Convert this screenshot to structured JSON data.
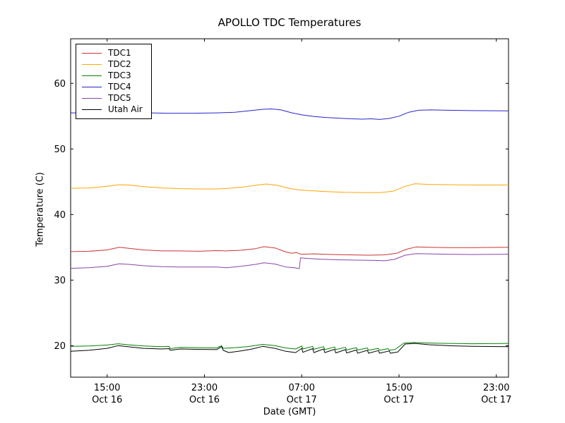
{
  "chart_data": {
    "type": "line",
    "title": "APOLLO TDC Temperatures",
    "xlabel": "Date (GMT)",
    "ylabel": "Temperature (C)",
    "x_unit": "hours after Oct 16 12:00 (GMT)",
    "xlim": [
      0,
      36
    ],
    "ylim": [
      15.2,
      66.8
    ],
    "grid": false,
    "legend_position": "upper left",
    "yticks": [
      {
        "value": 20,
        "label": "20"
      },
      {
        "value": 30,
        "label": "30"
      },
      {
        "value": 40,
        "label": "40"
      },
      {
        "value": 50,
        "label": "50"
      },
      {
        "value": 60,
        "label": "60"
      }
    ],
    "xticks": [
      {
        "value": 3,
        "time": "15:00",
        "date": "Oct 16"
      },
      {
        "value": 11,
        "time": "23:00",
        "date": "Oct 16"
      },
      {
        "value": 19,
        "time": "07:00",
        "date": "Oct 17"
      },
      {
        "value": 27,
        "time": "15:00",
        "date": "Oct 17"
      },
      {
        "value": 35,
        "time": "23:00",
        "date": "Oct 17"
      }
    ],
    "series": [
      {
        "name": "TDC1",
        "color": "#cc3333",
        "points": [
          [
            0,
            34.35
          ],
          [
            1.5,
            34.4
          ],
          [
            3,
            34.6
          ],
          [
            4,
            35.0
          ],
          [
            4.8,
            34.85
          ],
          [
            6,
            34.6
          ],
          [
            7.5,
            34.45
          ],
          [
            9,
            34.45
          ],
          [
            10.5,
            34.4
          ],
          [
            12,
            34.5
          ],
          [
            12.8,
            34.45
          ],
          [
            14,
            34.55
          ],
          [
            15.2,
            34.8
          ],
          [
            15.9,
            35.1
          ],
          [
            16.8,
            34.9
          ],
          [
            17.6,
            34.35
          ],
          [
            18.2,
            34.1
          ],
          [
            18.6,
            34.2
          ],
          [
            18.9,
            33.95
          ],
          [
            20,
            34.0
          ],
          [
            21.5,
            33.9
          ],
          [
            23,
            33.85
          ],
          [
            24.5,
            33.8
          ],
          [
            25.8,
            33.85
          ],
          [
            26.8,
            34.1
          ],
          [
            27.6,
            34.7
          ],
          [
            28.4,
            35.05
          ],
          [
            29.5,
            35.0
          ],
          [
            31,
            34.95
          ],
          [
            33,
            34.95
          ],
          [
            36,
            35.0
          ]
        ]
      },
      {
        "name": "TDC2",
        "color": "#ffa500",
        "points": [
          [
            0,
            44.0
          ],
          [
            1.5,
            44.05
          ],
          [
            3,
            44.3
          ],
          [
            4,
            44.55
          ],
          [
            4.8,
            44.5
          ],
          [
            6,
            44.25
          ],
          [
            7.5,
            44.05
          ],
          [
            9,
            43.95
          ],
          [
            10.5,
            43.9
          ],
          [
            12,
            43.9
          ],
          [
            13,
            44.0
          ],
          [
            14.2,
            44.2
          ],
          [
            15.4,
            44.5
          ],
          [
            16.1,
            44.65
          ],
          [
            17,
            44.45
          ],
          [
            17.8,
            44.05
          ],
          [
            18.6,
            43.8
          ],
          [
            19.5,
            43.65
          ],
          [
            21,
            43.5
          ],
          [
            22.5,
            43.4
          ],
          [
            24,
            43.35
          ],
          [
            25.5,
            43.35
          ],
          [
            26.5,
            43.55
          ],
          [
            27.5,
            44.3
          ],
          [
            28.3,
            44.7
          ],
          [
            29.3,
            44.6
          ],
          [
            31,
            44.55
          ],
          [
            33,
            44.5
          ],
          [
            36,
            44.5
          ]
        ]
      },
      {
        "name": "TDC3",
        "color": "#008000",
        "points": [
          [
            0,
            19.9
          ],
          [
            1.5,
            19.95
          ],
          [
            3,
            20.1
          ],
          [
            3.9,
            20.3
          ],
          [
            4.7,
            20.15
          ],
          [
            6,
            19.95
          ],
          [
            7.5,
            19.85
          ],
          [
            8.1,
            19.9
          ],
          [
            8.2,
            19.55
          ],
          [
            9,
            19.75
          ],
          [
            10.5,
            19.7
          ],
          [
            12,
            19.65
          ],
          [
            12.4,
            20.0
          ],
          [
            12.55,
            19.6
          ],
          [
            13.5,
            19.7
          ],
          [
            14.5,
            19.85
          ],
          [
            15.8,
            20.2
          ],
          [
            16.8,
            20.0
          ],
          [
            17.7,
            19.65
          ],
          [
            18.5,
            19.5
          ],
          [
            19.0,
            19.95
          ],
          [
            19.1,
            19.5
          ],
          [
            19.9,
            19.9
          ],
          [
            20.0,
            19.45
          ],
          [
            20.8,
            19.85
          ],
          [
            20.9,
            19.4
          ],
          [
            21.7,
            19.8
          ],
          [
            21.8,
            19.4
          ],
          [
            22.6,
            19.75
          ],
          [
            22.7,
            19.35
          ],
          [
            23.5,
            19.7
          ],
          [
            23.6,
            19.35
          ],
          [
            24.4,
            19.65
          ],
          [
            24.5,
            19.3
          ],
          [
            25.3,
            19.6
          ],
          [
            25.4,
            19.3
          ],
          [
            26.1,
            19.55
          ],
          [
            26.2,
            19.3
          ],
          [
            26.7,
            19.45
          ],
          [
            27.4,
            20.4
          ],
          [
            28.2,
            20.5
          ],
          [
            29.5,
            20.4
          ],
          [
            31,
            20.35
          ],
          [
            33,
            20.3
          ],
          [
            36,
            20.35
          ]
        ]
      },
      {
        "name": "TDC4",
        "color": "#2525cc",
        "points": [
          [
            0,
            55.5
          ],
          [
            2,
            55.5
          ],
          [
            3.5,
            55.55
          ],
          [
            5,
            55.55
          ],
          [
            6.5,
            55.5
          ],
          [
            8,
            55.45
          ],
          [
            10,
            55.45
          ],
          [
            12,
            55.5
          ],
          [
            13.5,
            55.6
          ],
          [
            14.8,
            55.85
          ],
          [
            15.8,
            56.05
          ],
          [
            16.5,
            56.1
          ],
          [
            17.3,
            55.95
          ],
          [
            18.2,
            55.5
          ],
          [
            19,
            55.2
          ],
          [
            20,
            54.95
          ],
          [
            21,
            54.8
          ],
          [
            22,
            54.7
          ],
          [
            23,
            54.6
          ],
          [
            24,
            54.55
          ],
          [
            24.7,
            54.6
          ],
          [
            25.4,
            54.5
          ],
          [
            26.2,
            54.65
          ],
          [
            27,
            55.0
          ],
          [
            27.8,
            55.6
          ],
          [
            28.6,
            55.9
          ],
          [
            29.6,
            55.95
          ],
          [
            31,
            55.9
          ],
          [
            33,
            55.85
          ],
          [
            36,
            55.8
          ]
        ]
      },
      {
        "name": "TDC5",
        "color": "#8844aa",
        "points": [
          [
            0,
            31.8
          ],
          [
            1.5,
            31.9
          ],
          [
            3,
            32.1
          ],
          [
            4,
            32.5
          ],
          [
            4.8,
            32.4
          ],
          [
            6,
            32.2
          ],
          [
            7.5,
            32.05
          ],
          [
            9,
            32.0
          ],
          [
            10.5,
            32.0
          ],
          [
            12,
            32.0
          ],
          [
            12.8,
            31.9
          ],
          [
            14,
            32.1
          ],
          [
            15.2,
            32.4
          ],
          [
            15.9,
            32.65
          ],
          [
            16.8,
            32.45
          ],
          [
            17.7,
            32.0
          ],
          [
            18.4,
            31.9
          ],
          [
            18.8,
            31.75
          ],
          [
            18.9,
            33.4
          ],
          [
            19.5,
            33.3
          ],
          [
            20.5,
            33.2
          ],
          [
            22,
            33.1
          ],
          [
            23.5,
            33.05
          ],
          [
            25,
            33.0
          ],
          [
            25.8,
            32.95
          ],
          [
            26.6,
            33.15
          ],
          [
            27.5,
            33.8
          ],
          [
            28.4,
            34.05
          ],
          [
            29.5,
            34.0
          ],
          [
            31,
            33.95
          ],
          [
            33,
            33.9
          ],
          [
            36,
            33.95
          ]
        ]
      },
      {
        "name": "Utah Air",
        "color": "#000000",
        "points": [
          [
            0,
            19.15
          ],
          [
            1.5,
            19.3
          ],
          [
            3,
            19.6
          ],
          [
            3.9,
            20.0
          ],
          [
            4.7,
            19.85
          ],
          [
            6,
            19.6
          ],
          [
            7.5,
            19.5
          ],
          [
            8.1,
            19.55
          ],
          [
            8.2,
            19.3
          ],
          [
            9,
            19.5
          ],
          [
            10.5,
            19.45
          ],
          [
            12,
            19.4
          ],
          [
            12.4,
            19.85
          ],
          [
            12.55,
            19.3
          ],
          [
            13,
            18.95
          ],
          [
            14,
            19.2
          ],
          [
            14.8,
            19.45
          ],
          [
            15.8,
            19.9
          ],
          [
            16.8,
            19.6
          ],
          [
            17.7,
            19.15
          ],
          [
            18.5,
            18.95
          ],
          [
            19.0,
            19.6
          ],
          [
            19.1,
            19.0
          ],
          [
            19.9,
            19.55
          ],
          [
            20.0,
            18.95
          ],
          [
            20.8,
            19.5
          ],
          [
            20.9,
            18.95
          ],
          [
            21.7,
            19.45
          ],
          [
            21.8,
            18.9
          ],
          [
            22.6,
            19.4
          ],
          [
            22.7,
            18.9
          ],
          [
            23.5,
            19.35
          ],
          [
            23.6,
            18.85
          ],
          [
            24.4,
            19.3
          ],
          [
            24.5,
            18.85
          ],
          [
            25.3,
            19.25
          ],
          [
            25.4,
            18.85
          ],
          [
            26.2,
            19.2
          ],
          [
            26.3,
            18.85
          ],
          [
            26.9,
            19.05
          ],
          [
            27.5,
            20.25
          ],
          [
            28.3,
            20.35
          ],
          [
            29.5,
            20.15
          ],
          [
            31,
            20.0
          ],
          [
            33,
            19.9
          ],
          [
            36,
            19.85
          ]
        ]
      }
    ]
  }
}
